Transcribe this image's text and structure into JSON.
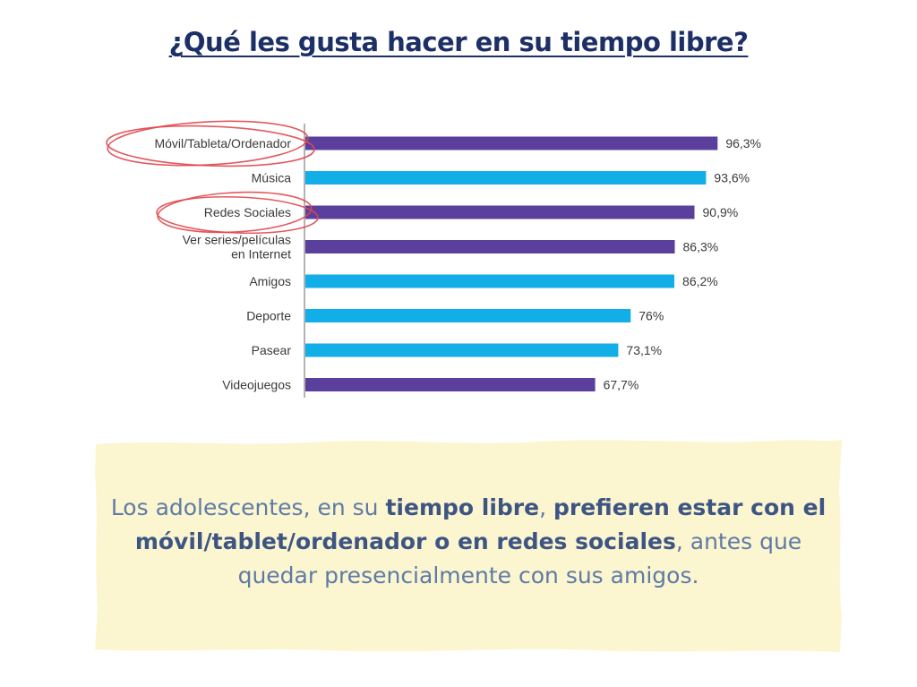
{
  "title": "¿Qué les gusta hacer en su tiempo libre?",
  "chart_data": {
    "type": "bar",
    "orientation": "horizontal",
    "categories": [
      "Móvil/Tableta/Ordenador",
      "Música",
      "Redes Sociales",
      "Ver series/películas en Internet",
      "Amigos",
      "Deporte",
      "Pasear",
      "Videojuegos"
    ],
    "values": [
      96.3,
      93.6,
      90.9,
      86.3,
      86.2,
      76,
      73.1,
      67.7
    ],
    "value_labels": [
      "96,3%",
      "93,6%",
      "90,9%",
      "86,3%",
      "86,2%",
      "76%",
      "73,1%",
      "67,7%"
    ],
    "bar_colors": [
      "#5a3f9c",
      "#12aee8",
      "#5a3f9c",
      "#5a3f9c",
      "#12aee8",
      "#12aee8",
      "#12aee8",
      "#5a3f9c"
    ],
    "highlighted_categories": [
      "Móvil/Tableta/Ordenador",
      "Redes Sociales"
    ],
    "highlight_color": "#e0474c",
    "xlim": [
      0,
      100
    ],
    "grid": false,
    "legend": "none"
  },
  "note": {
    "parts": [
      {
        "text": "Los adolescentes, en su ",
        "bold": false
      },
      {
        "text": "tiempo libre",
        "bold": true
      },
      {
        "text": ", ",
        "bold": false
      },
      {
        "text": "prefieren estar con el móvil/tablet/ordenador o en redes sociales",
        "bold": true
      },
      {
        "text": ", antes que quedar presencialmente con sus amigos.",
        "bold": false
      }
    ],
    "background_color": "#fbf6cf"
  }
}
